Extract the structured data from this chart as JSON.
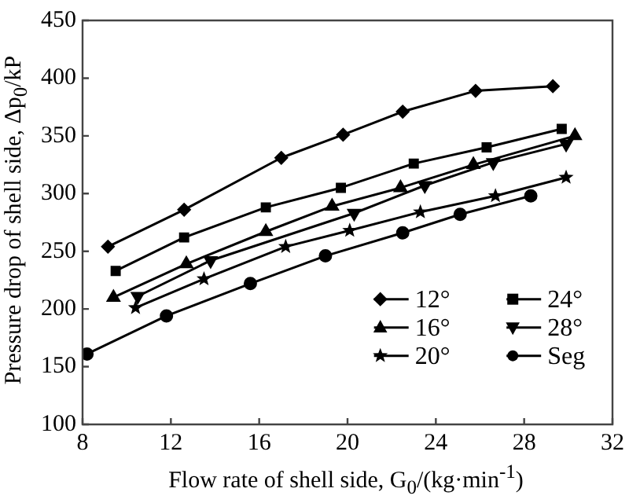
{
  "chart_data": {
    "type": "line",
    "xlabel": "Flow rate of shell side, G$_{0}$/(kg·min$^{-1}$)",
    "ylabel": "Pressure drop of shell side, Δp$_{0}$/kP",
    "xlim": [
      8,
      32
    ],
    "xticks": [
      8,
      12,
      16,
      20,
      24,
      28,
      32
    ],
    "ylim": [
      100,
      450
    ],
    "yticks": [
      100,
      150,
      200,
      250,
      300,
      350,
      400,
      450
    ],
    "grid": false,
    "legend": "bottom right",
    "line_style": "solid",
    "series": [
      {
        "name": "12°",
        "color": "#000000",
        "marker": "diamond",
        "x": [
          9.15,
          12.6,
          17.0,
          19.8,
          22.5,
          25.8,
          29.3
        ],
        "values": [
          254,
          286,
          331,
          351,
          371,
          389,
          393
        ]
      },
      {
        "name": "16°",
        "color": "#000000",
        "marker": "triangle",
        "x": [
          9.4,
          12.7,
          16.3,
          19.3,
          22.4,
          25.7,
          30.3
        ],
        "values": [
          210,
          239,
          267,
          289,
          305,
          325,
          350
        ]
      },
      {
        "name": "20°",
        "color": "#000000",
        "marker": "star",
        "x": [
          10.4,
          13.5,
          17.2,
          20.1,
          23.3,
          26.7,
          29.9
        ],
        "values": [
          201,
          226,
          254,
          268,
          284,
          298,
          314
        ]
      },
      {
        "name": "24°",
        "color": "#000000",
        "marker": "square",
        "x": [
          9.5,
          12.6,
          16.3,
          19.7,
          23.0,
          26.3,
          29.7
        ],
        "values": [
          233,
          262,
          288,
          305,
          326,
          340,
          356
        ]
      },
      {
        "name": "28°",
        "color": "#000000",
        "marker": "triangle-down",
        "x": [
          10.5,
          13.8,
          20.3,
          23.5,
          26.6,
          29.9
        ],
        "values": [
          211,
          242,
          283,
          307,
          327,
          343
        ]
      },
      {
        "name": "Seg",
        "color": "#000000",
        "marker": "circle",
        "x": [
          8.2,
          11.8,
          15.6,
          19.0,
          22.5,
          25.1,
          28.3
        ],
        "values": [
          161,
          194,
          222,
          246,
          266,
          282,
          298
        ]
      }
    ]
  }
}
